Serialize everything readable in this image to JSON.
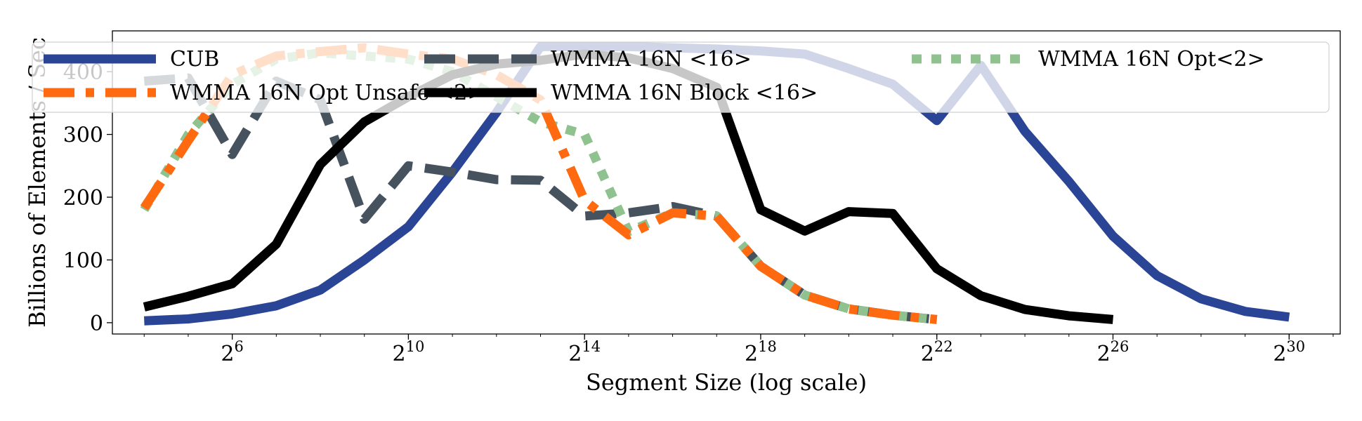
{
  "chart_data": {
    "type": "line",
    "xlabel": "Segment Size (log scale)",
    "ylabel": "Billions of Elements / Sec",
    "x_scale": "log2",
    "x_ticks": [
      {
        "value": 64,
        "base": "2",
        "exp": "6"
      },
      {
        "value": 1024,
        "base": "2",
        "exp": "10"
      },
      {
        "value": 16384,
        "base": "2",
        "exp": "14"
      },
      {
        "value": 262144,
        "base": "2",
        "exp": "18"
      },
      {
        "value": 4194304,
        "base": "2",
        "exp": "22"
      },
      {
        "value": 67108864,
        "base": "2",
        "exp": "26"
      },
      {
        "value": 1073741824,
        "base": "2",
        "exp": "30"
      }
    ],
    "y_ticks": [
      "0",
      "100",
      "200",
      "300",
      "400"
    ],
    "xlim": [
      9.7,
      2400000000
    ],
    "ylim": [
      -18,
      465
    ],
    "grid": false,
    "legend_position": "top",
    "series": [
      {
        "name": "CUB",
        "color": "#2b4596",
        "style": "solid",
        "x": [
          16,
          32,
          64,
          128,
          256,
          512,
          1024,
          2048,
          4096,
          8192,
          16384,
          32768,
          65536,
          131072,
          262144,
          524288,
          1048576,
          2097152,
          4194304,
          8388608,
          16777216,
          33554432,
          67108864,
          134217728,
          268435456,
          536870912,
          1073741824
        ],
        "y": [
          3,
          6,
          14,
          27,
          52,
          100,
          153,
          240,
          335,
          440,
          440,
          440,
          438,
          436,
          433,
          428,
          405,
          380,
          322,
          410,
          305,
          225,
          138,
          75,
          38,
          18,
          9
        ]
      },
      {
        "name": "WMMA 16N <16>",
        "color": "#46535e",
        "style": "dashed",
        "x": [
          16,
          32,
          64,
          128,
          256,
          512,
          1024,
          2048,
          4096,
          8192,
          16384,
          32768,
          65536,
          131072,
          262144,
          524288,
          1048576,
          2097152,
          4194304
        ],
        "y": [
          385,
          390,
          268,
          385,
          355,
          165,
          250,
          240,
          228,
          227,
          170,
          175,
          185,
          170,
          90,
          44,
          22,
          12,
          5
        ]
      },
      {
        "name": "WMMA 16N Opt<2>",
        "color": "#8fc28f",
        "style": "dotted",
        "x": [
          16,
          32,
          64,
          128,
          256,
          512,
          1024,
          2048,
          4096,
          8192,
          16384,
          32768,
          65536,
          131072,
          262144,
          524288,
          1048576,
          2097152,
          4194304
        ],
        "y": [
          180,
          300,
          380,
          420,
          430,
          425,
          420,
          400,
          360,
          320,
          300,
          145,
          175,
          170,
          90,
          44,
          22,
          12,
          5
        ]
      },
      {
        "name": "WMMA 16N Opt Unsafe <2>",
        "color": "#ff6a10",
        "style": "dashdot",
        "x": [
          16,
          32,
          64,
          128,
          256,
          512,
          1024,
          2048,
          4096,
          8192,
          16384,
          32768,
          65536,
          131072,
          262144,
          524288,
          1048576,
          2097152,
          4194304
        ],
        "y": [
          183,
          290,
          395,
          425,
          432,
          438,
          428,
          420,
          395,
          355,
          195,
          140,
          175,
          170,
          90,
          44,
          22,
          12,
          5
        ]
      },
      {
        "name": "WMMA 16N Block <16>",
        "color": "#000000",
        "style": "solid",
        "x": [
          16,
          32,
          64,
          128,
          256,
          512,
          1024,
          2048,
          4096,
          8192,
          16384,
          32768,
          65536,
          131072,
          262144,
          524288,
          1048576,
          2097152,
          4194304,
          8388608,
          16777216,
          33554432,
          67108864
        ],
        "y": [
          25,
          42,
          62,
          125,
          252,
          320,
          360,
          395,
          412,
          418,
          428,
          422,
          405,
          375,
          180,
          146,
          177,
          174,
          86,
          43,
          21,
          11,
          5
        ]
      }
    ]
  }
}
